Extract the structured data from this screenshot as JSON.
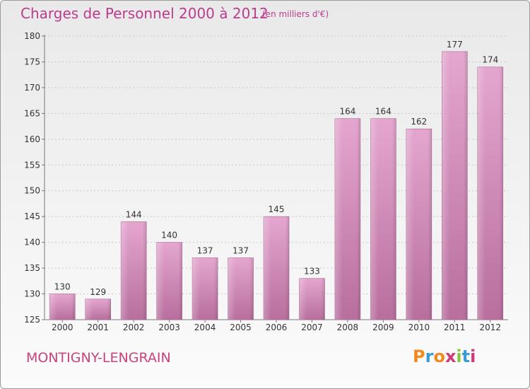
{
  "header": {
    "title": "Charges de Personnel 2000 à 2012",
    "subtitle": "(en milliers d'€)"
  },
  "footer": {
    "commune": "MONTIGNY-LENGRAIN",
    "brand": "Proxiti",
    "brand_colors": [
      "#f08a1c",
      "#3a9bd6",
      "#f08a1c",
      "#d4367a",
      "#8ac43f",
      "#3a9bd6",
      "#d4367a"
    ]
  },
  "chart_data": {
    "type": "bar",
    "title": "Charges de Personnel 2000 à 2012",
    "subtitle": "(en milliers d'€)",
    "categories": [
      "2000",
      "2001",
      "2002",
      "2003",
      "2004",
      "2005",
      "2006",
      "2007",
      "2008",
      "2009",
      "2010",
      "2011",
      "2012"
    ],
    "values": [
      130,
      129,
      144,
      140,
      137,
      137,
      145,
      133,
      164,
      164,
      162,
      177,
      174
    ],
    "ylim": [
      125,
      180
    ],
    "yticks": [
      125,
      130,
      135,
      140,
      145,
      150,
      155,
      160,
      165,
      170,
      175,
      180
    ],
    "grid": true,
    "bar_color": "#d98fbf"
  }
}
